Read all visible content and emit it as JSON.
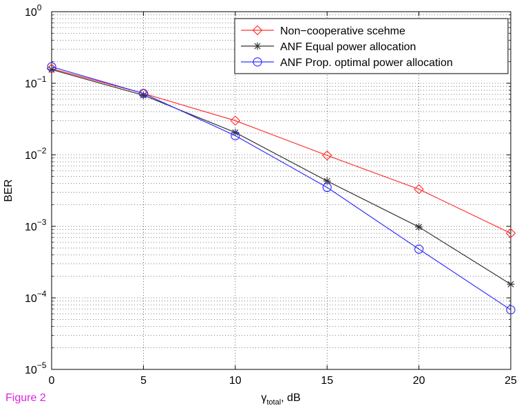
{
  "figure_label": "Figure 2",
  "chart_data": {
    "type": "line",
    "x": [
      0,
      5,
      10,
      15,
      20,
      25
    ],
    "xlabel": "γtotal, dB",
    "xlabel_main": "γ",
    "xlabel_sub": "total",
    "xlabel_tail": ", dB",
    "ylabel": "BER",
    "xlim": [
      0,
      25
    ],
    "ylim": [
      1e-05,
      1
    ],
    "yscale": "log",
    "grid": true,
    "legend_position": "top-right",
    "x_ticks": [
      "0",
      "5",
      "10",
      "15",
      "20",
      "25"
    ],
    "y_ticks": [
      {
        "base": "10",
        "exp": "0"
      },
      {
        "base": "10",
        "exp": "−1"
      },
      {
        "base": "10",
        "exp": "−2"
      },
      {
        "base": "10",
        "exp": "−3"
      },
      {
        "base": "10",
        "exp": "−4"
      },
      {
        "base": "10",
        "exp": "−5"
      }
    ],
    "series": [
      {
        "name": "Non−cooperative scehme",
        "color": "#ff3333",
        "marker": "diamond",
        "values": [
          0.16,
          0.072,
          0.03,
          0.0098,
          0.0033,
          0.0008
        ]
      },
      {
        "name": "ANF Equal power allocation",
        "color": "#333333",
        "marker": "asterisk",
        "values": [
          0.155,
          0.068,
          0.0205,
          0.0043,
          0.00098,
          0.000155
        ]
      },
      {
        "name": "ANF Prop. optimal power allocation",
        "color": "#3333ff",
        "marker": "circle",
        "values": [
          0.17,
          0.072,
          0.0185,
          0.0035,
          0.00048,
          6.8e-05
        ]
      }
    ]
  }
}
